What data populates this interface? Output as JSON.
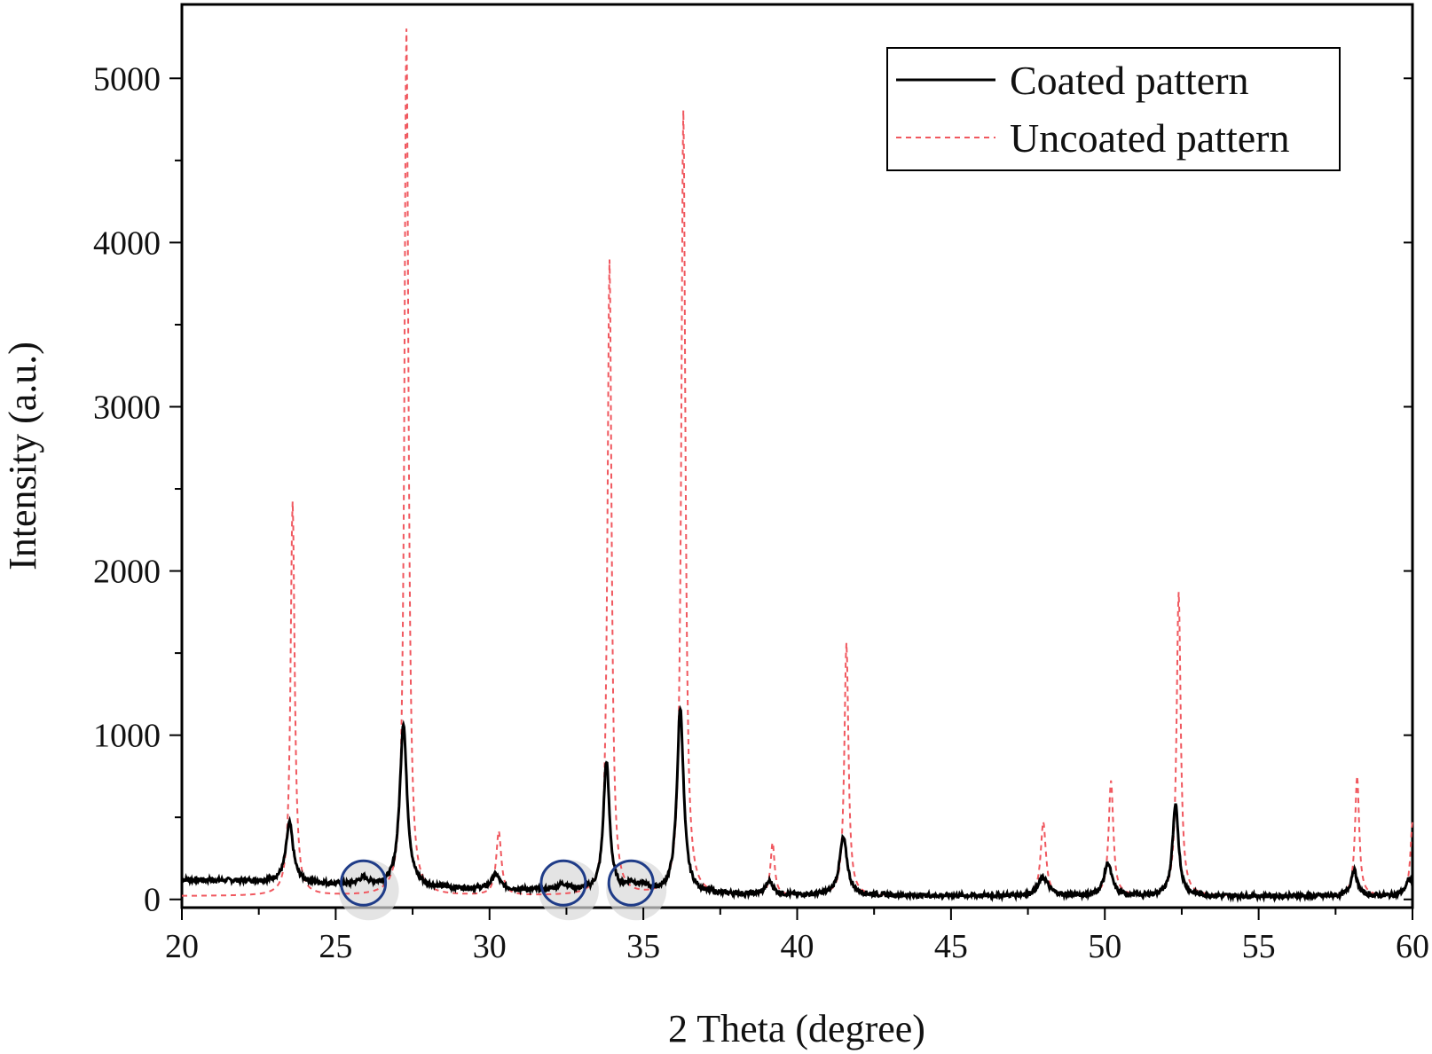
{
  "chart_data": {
    "type": "line",
    "title": "",
    "xlabel": "2 Theta (degree)",
    "ylabel": "Intensity (a.u.)",
    "xlim": [
      20,
      60
    ],
    "ylim": [
      -50,
      5450
    ],
    "x_ticks": [
      20,
      25,
      30,
      35,
      40,
      45,
      50,
      55,
      60
    ],
    "y_ticks": [
      0,
      1000,
      2000,
      3000,
      4000,
      5000
    ],
    "grid": false,
    "legend_position": "top-right",
    "series": [
      {
        "name": "Coated pattern",
        "color": "#000000",
        "style": "solid",
        "baseline": [
          [
            20,
            120
          ],
          [
            23,
            110
          ],
          [
            25,
            90
          ],
          [
            27,
            75
          ],
          [
            30,
            60
          ],
          [
            33,
            50
          ],
          [
            36,
            35
          ],
          [
            40,
            25
          ],
          [
            50,
            20
          ],
          [
            60,
            20
          ]
        ],
        "peaks": [
          {
            "x": 23.5,
            "height": 360,
            "width": 0.14
          },
          {
            "x": 25.9,
            "height": 40,
            "width": 0.2
          },
          {
            "x": 27.2,
            "height": 1000,
            "width": 0.14
          },
          {
            "x": 30.2,
            "height": 90,
            "width": 0.16
          },
          {
            "x": 32.4,
            "height": 35,
            "width": 0.25
          },
          {
            "x": 33.8,
            "height": 790,
            "width": 0.12
          },
          {
            "x": 34.6,
            "height": 45,
            "width": 0.2
          },
          {
            "x": 35.0,
            "height": 30,
            "width": 0.2
          },
          {
            "x": 36.2,
            "height": 1130,
            "width": 0.13
          },
          {
            "x": 39.1,
            "height": 80,
            "width": 0.14
          },
          {
            "x": 41.5,
            "height": 350,
            "width": 0.15
          },
          {
            "x": 48.0,
            "height": 110,
            "width": 0.2
          },
          {
            "x": 50.1,
            "height": 200,
            "width": 0.15
          },
          {
            "x": 52.3,
            "height": 550,
            "width": 0.12
          },
          {
            "x": 58.1,
            "height": 160,
            "width": 0.12
          },
          {
            "x": 59.9,
            "height": 100,
            "width": 0.15
          }
        ]
      },
      {
        "name": "Uncoated pattern",
        "color": "#f0585f",
        "style": "dashed",
        "baseline": [
          [
            20,
            20
          ],
          [
            25,
            20
          ],
          [
            30,
            20
          ],
          [
            35,
            20
          ],
          [
            40,
            20
          ],
          [
            50,
            20
          ],
          [
            60,
            20
          ]
        ],
        "peaks": [
          {
            "x": 23.6,
            "height": 2400,
            "width": 0.08
          },
          {
            "x": 27.3,
            "height": 5280,
            "width": 0.08
          },
          {
            "x": 30.3,
            "height": 390,
            "width": 0.1
          },
          {
            "x": 33.9,
            "height": 3870,
            "width": 0.08
          },
          {
            "x": 36.3,
            "height": 4780,
            "width": 0.08
          },
          {
            "x": 39.2,
            "height": 320,
            "width": 0.08
          },
          {
            "x": 41.6,
            "height": 1540,
            "width": 0.08
          },
          {
            "x": 48.0,
            "height": 450,
            "width": 0.1
          },
          {
            "x": 50.2,
            "height": 700,
            "width": 0.09
          },
          {
            "x": 52.4,
            "height": 1850,
            "width": 0.08
          },
          {
            "x": 58.2,
            "height": 730,
            "width": 0.08
          },
          {
            "x": 60.0,
            "height": 450,
            "width": 0.08
          }
        ]
      }
    ],
    "annotations": [
      {
        "type": "circle",
        "x": 25.9,
        "y": 100,
        "color": "#1f3c88"
      },
      {
        "type": "circle",
        "x": 32.4,
        "y": 100,
        "color": "#1f3c88"
      },
      {
        "type": "circle",
        "x": 34.6,
        "y": 100,
        "color": "#1f3c88"
      }
    ]
  }
}
